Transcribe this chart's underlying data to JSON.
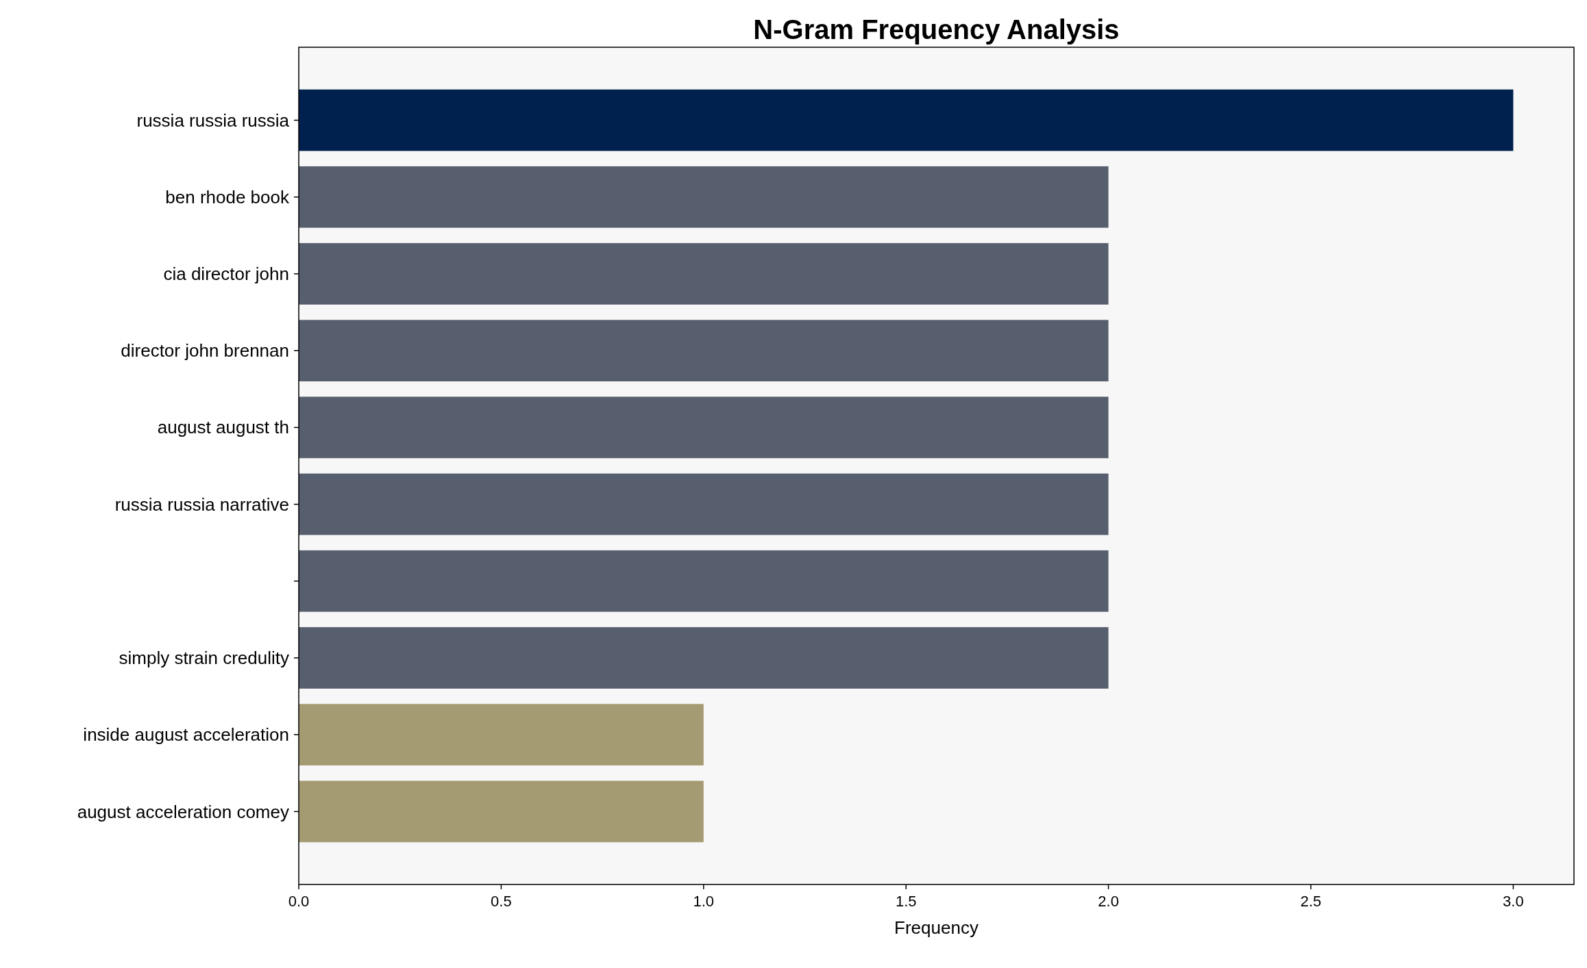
{
  "chart_data": {
    "type": "bar",
    "orientation": "horizontal",
    "title": "N-Gram Frequency Analysis",
    "xlabel": "Frequency",
    "categories": [
      "russia russia russia",
      "ben rhode book",
      "cia director john",
      "director john brennan",
      "august august th",
      "russia russia narrative",
      null,
      "simply strain credulity",
      "inside august acceleration",
      "august acceleration comey"
    ],
    "values": [
      3,
      2,
      2,
      2,
      2,
      2,
      2,
      2,
      1,
      1
    ],
    "colors": [
      "#00214d",
      "#575e6e",
      "#575e6e",
      "#575e6e",
      "#575e6e",
      "#575e6e",
      "#575e6e",
      "#575e6e",
      "#a59b73",
      "#a59b73"
    ],
    "xlim": [
      0,
      3.15
    ],
    "xticks": [
      {
        "value": 0,
        "label": "0.0"
      },
      {
        "value": 0.5,
        "label": "0.5"
      },
      {
        "value": 1,
        "label": "1.0"
      },
      {
        "value": 1.5,
        "label": "1.5"
      },
      {
        "value": 2,
        "label": "2.0"
      },
      {
        "value": 2.5,
        "label": "2.5"
      },
      {
        "value": 3,
        "label": "3.0"
      }
    ],
    "grid": false
  }
}
